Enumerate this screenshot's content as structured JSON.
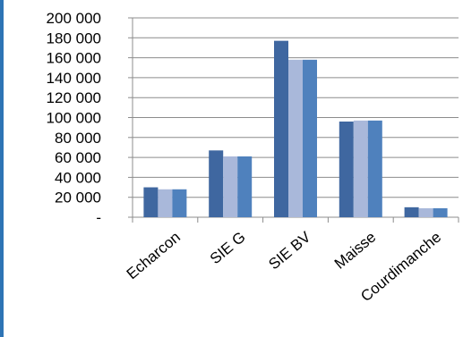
{
  "chart_data": {
    "type": "bar",
    "categories": [
      "Echarcon",
      "SIE G",
      "SIE BV",
      "Maisse",
      "Courdimanche"
    ],
    "series": [
      {
        "values": [
          30000,
          67000,
          177000,
          96000,
          10000
        ]
      },
      {
        "values": [
          28000,
          61000,
          158000,
          97000,
          9000
        ]
      },
      {
        "values": [
          28000,
          61000,
          158000,
          97000,
          9000
        ]
      }
    ],
    "series_colors": [
      "#3f67a0",
      "#a9b8da",
      "#4f81bd"
    ],
    "ylim": [
      0,
      200000
    ],
    "yticks": [
      0,
      20000,
      40000,
      60000,
      80000,
      100000,
      120000,
      140000,
      160000,
      180000,
      200000
    ],
    "ytick_labels": [
      "-",
      "20 000",
      "40 000",
      "60 000",
      "80 000",
      "100 000",
      "120 000",
      "140 000",
      "160 000",
      "180 000",
      "200 000"
    ],
    "grid": true,
    "legend": "none",
    "title": "",
    "xlabel": "",
    "ylabel": ""
  }
}
